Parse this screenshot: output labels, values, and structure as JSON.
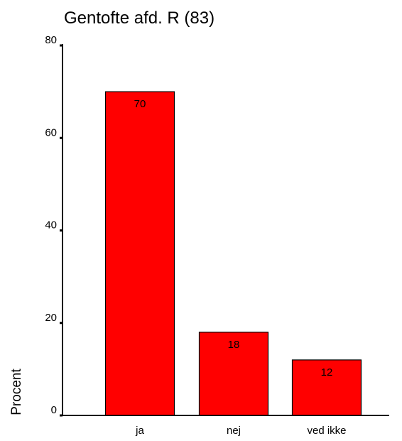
{
  "chart_data": {
    "type": "bar",
    "title": "Gentofte afd. R (83)",
    "xlabel": "",
    "ylabel": "Procent",
    "categories": [
      "ja",
      "nej",
      "ved ikke"
    ],
    "values": [
      70,
      18,
      12
    ],
    "data_labels": [
      "70",
      "18",
      "12"
    ],
    "ylim": [
      0,
      80
    ],
    "yticks": [
      0,
      20,
      40,
      60,
      80
    ],
    "bar_color": "#ff0000",
    "grid": false,
    "legend": "none"
  }
}
